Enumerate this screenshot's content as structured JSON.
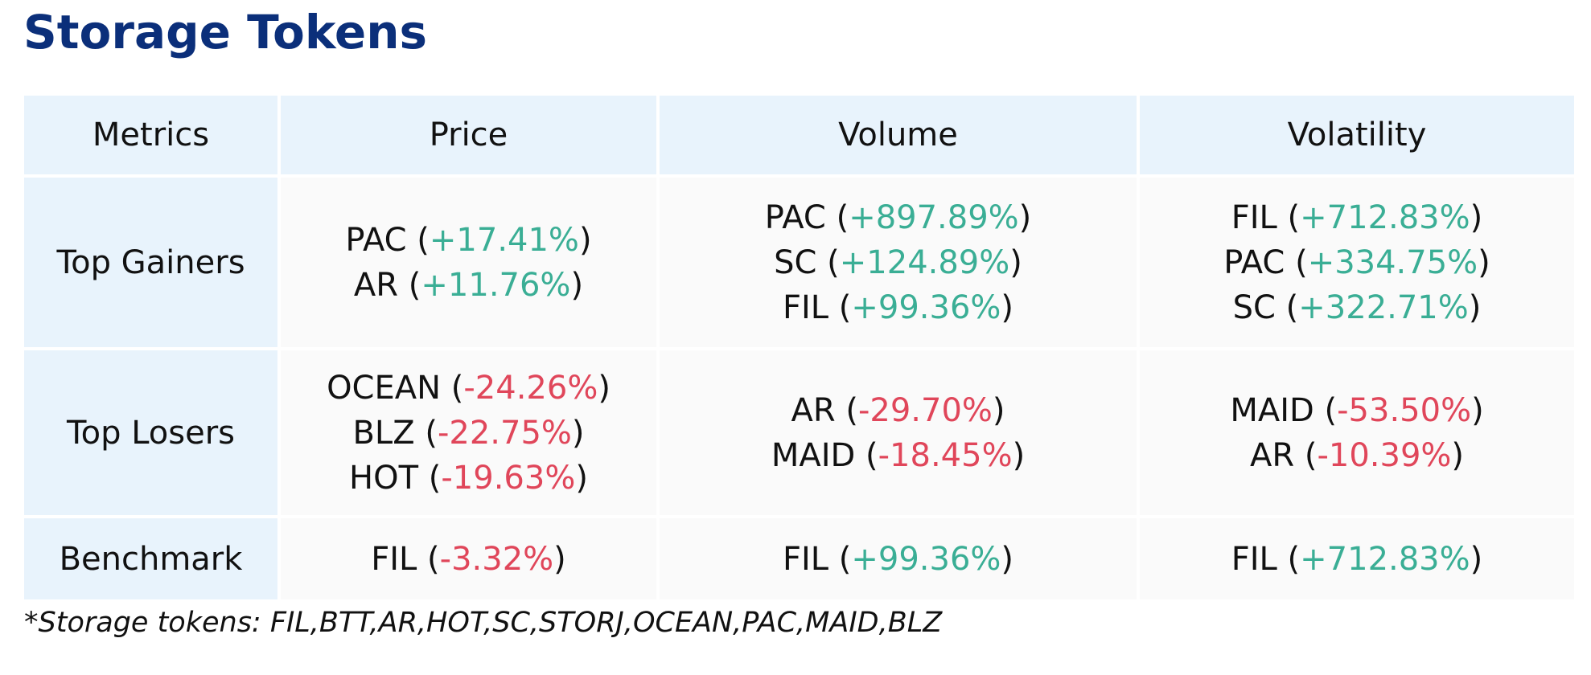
{
  "title": "Storage Tokens",
  "columns": [
    "Metrics",
    "Price",
    "Volume",
    "Volatility"
  ],
  "rows": [
    {
      "label": "Top Gainers",
      "cells": [
        [
          {
            "token": "PAC",
            "change": "+17.41%",
            "dir": "up"
          },
          {
            "token": "AR",
            "change": "+11.76%",
            "dir": "up"
          }
        ],
        [
          {
            "token": "PAC",
            "change": "+897.89%",
            "dir": "up"
          },
          {
            "token": "SC",
            "change": "+124.89%",
            "dir": "up"
          },
          {
            "token": "FIL",
            "change": "+99.36%",
            "dir": "up"
          }
        ],
        [
          {
            "token": "FIL",
            "change": "+712.83%",
            "dir": "up"
          },
          {
            "token": "PAC",
            "change": "+334.75%",
            "dir": "up"
          },
          {
            "token": "SC",
            "change": "+322.71%",
            "dir": "up"
          }
        ]
      ]
    },
    {
      "label": "Top Losers",
      "cells": [
        [
          {
            "token": "OCEAN",
            "change": "-24.26%",
            "dir": "down"
          },
          {
            "token": "BLZ",
            "change": "-22.75%",
            "dir": "down"
          },
          {
            "token": "HOT",
            "change": "-19.63%",
            "dir": "down"
          }
        ],
        [
          {
            "token": "AR",
            "change": "-29.70%",
            "dir": "down"
          },
          {
            "token": "MAID",
            "change": "-18.45%",
            "dir": "down"
          }
        ],
        [
          {
            "token": "MAID",
            "change": "-53.50%",
            "dir": "down"
          },
          {
            "token": "AR",
            "change": "-10.39%",
            "dir": "down"
          }
        ]
      ]
    },
    {
      "label": "Benchmark",
      "cells": [
        [
          {
            "token": "FIL",
            "change": "-3.32%",
            "dir": "down"
          }
        ],
        [
          {
            "token": "FIL",
            "change": "+99.36%",
            "dir": "up"
          }
        ],
        [
          {
            "token": "FIL",
            "change": "+712.83%",
            "dir": "up"
          }
        ]
      ]
    }
  ],
  "footnote": "*Storage tokens: FIL,BTT,AR,HOT,SC,STORJ,OCEAN,PAC,MAID,BLZ",
  "colors": {
    "title": "#0b2f7a",
    "positive": "#3aae95",
    "negative": "#e0465a",
    "header_bg": "#e8f3fc",
    "body_bg": "#fafafa"
  }
}
